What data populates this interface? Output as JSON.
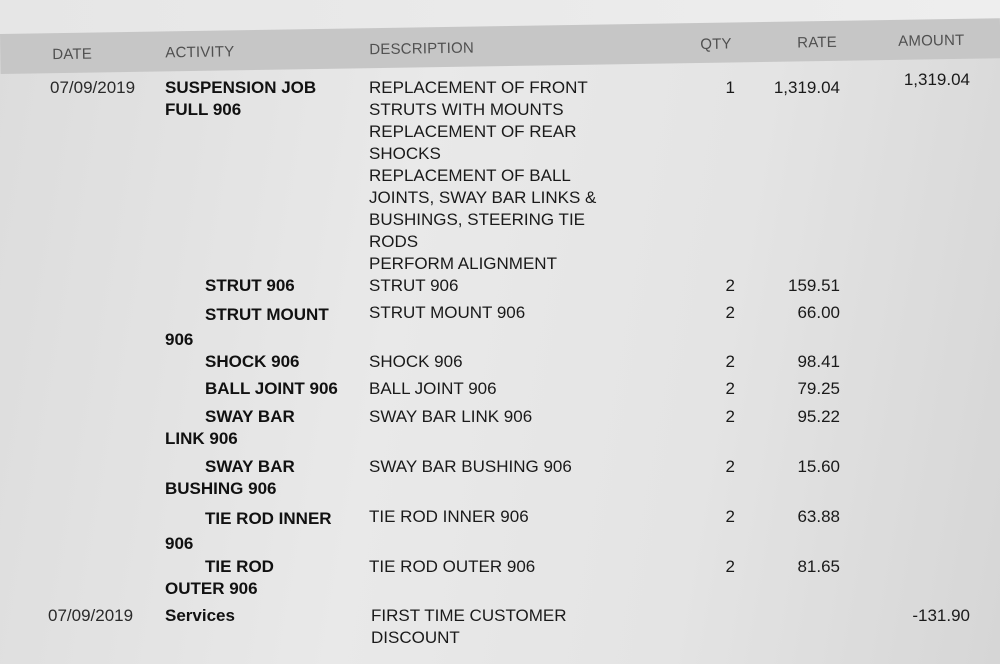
{
  "columns": {
    "date": "DATE",
    "activity": "ACTIVITY",
    "description": "DESCRIPTION",
    "qty": "QTY",
    "rate": "RATE",
    "amount": "AMOUNT"
  },
  "rows": [
    {
      "date": "07/09/2019",
      "activity": "SUSPENSION JOB FULL 906",
      "description": "REPLACEMENT OF FRONT STRUTS WITH MOUNTS\nREPLACEMENT OF REAR SHOCKS\nREPLACEMENT OF BALL JOINTS, SWAY BAR LINKS & BUSHINGS, STEERING TIE RODS\nPERFORM ALIGNMENT",
      "qty": "1",
      "rate": "1,319.04",
      "amount": "1,319.04"
    },
    {
      "activity": "STRUT 906",
      "description": "STRUT 906",
      "qty": "2",
      "rate": "159.51"
    },
    {
      "activity": "STRUT MOUNT 906",
      "description": "STRUT MOUNT 906",
      "qty": "2",
      "rate": "66.00"
    },
    {
      "activity": "SHOCK 906",
      "description": "SHOCK 906",
      "qty": "2",
      "rate": "98.41"
    },
    {
      "activity": "BALL JOINT 906",
      "description": "BALL JOINT 906",
      "qty": "2",
      "rate": "79.25"
    },
    {
      "activity": "SWAY BAR LINK 906",
      "description": "SWAY BAR LINK 906",
      "qty": "2",
      "rate": "95.22"
    },
    {
      "activity": "SWAY BAR BUSHING 906",
      "description": "SWAY BAR BUSHING 906",
      "qty": "2",
      "rate": "15.60"
    },
    {
      "activity": "TIE ROD INNER 906",
      "description": "TIE ROD INNER 906",
      "qty": "2",
      "rate": "63.88"
    },
    {
      "activity": "TIE ROD OUTER 906",
      "description": "TIE ROD OUTER 906",
      "qty": "2",
      "rate": "81.65"
    },
    {
      "date": "07/09/2019",
      "activity": "Services",
      "description": "FIRST TIME CUSTOMER DISCOUNT",
      "amount": "-131.90"
    }
  ]
}
